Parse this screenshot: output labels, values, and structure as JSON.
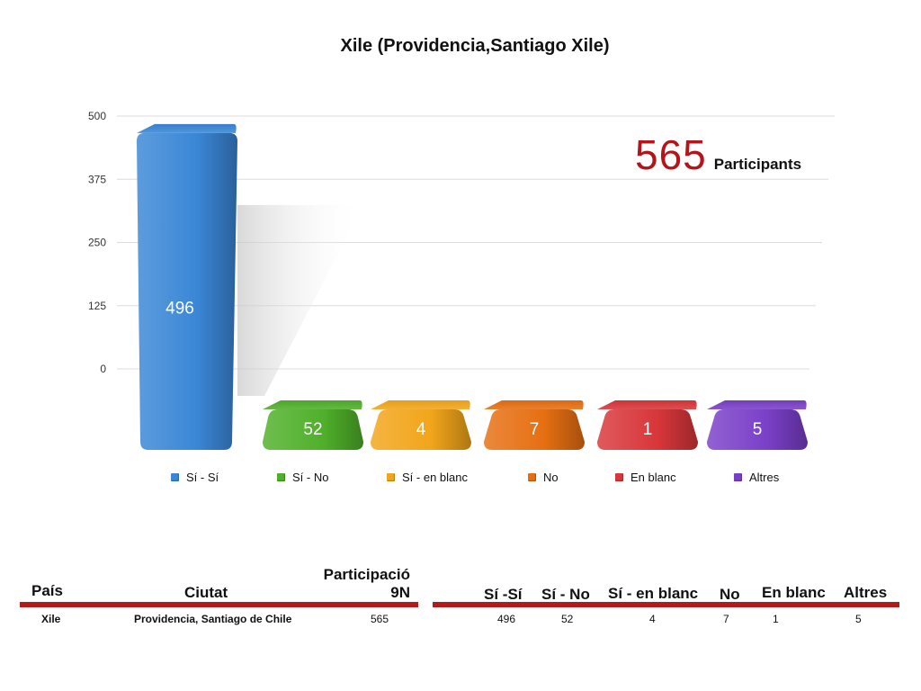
{
  "chart_data": {
    "type": "bar",
    "title": "Xile (Providencia,Santiago Xile)",
    "categories": [
      "Sí - Sí",
      "Sí - No",
      "Sí - en blanc",
      "No",
      "En blanc",
      "Altres"
    ],
    "values": [
      496,
      52,
      4,
      7,
      1,
      5
    ],
    "colors": [
      "#3a86d6",
      "#4fb02a",
      "#f2a51a",
      "#e66f12",
      "#d8363a",
      "#7a3fc8"
    ],
    "yticks": [
      500,
      375,
      250,
      125,
      0
    ],
    "ylim": [
      0,
      500
    ],
    "grid": true,
    "legend": "bottom",
    "annotation": {
      "number": "565",
      "label": "Participants"
    }
  },
  "table": {
    "headers": {
      "pais": "País",
      "ciutat": "Ciutat",
      "participacio_line1": "Participació",
      "participacio_line2": "9N",
      "si_si": "Sí -Sí",
      "si_no": "Sí - No",
      "si_en_blanc": "Sí - en blanc",
      "no": "No",
      "en_blanc": "En blanc",
      "altres": "Altres"
    },
    "row": {
      "pais": "Xile",
      "ciutat": "Providencia, Santiago de Chile",
      "participacio": "565",
      "si_si": "496",
      "si_no": "52",
      "si_en_blanc": "4",
      "no": "7",
      "en_blanc": "1",
      "altres": "5"
    }
  }
}
